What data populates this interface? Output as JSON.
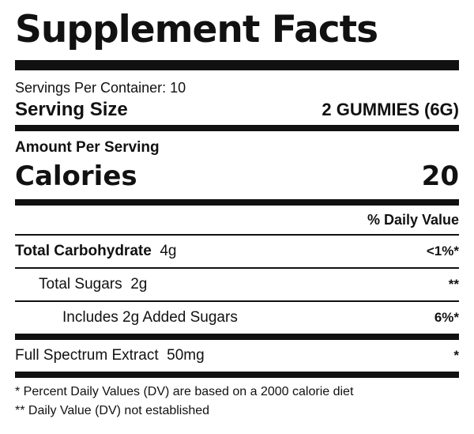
{
  "label": {
    "title": "Supplement Facts",
    "servings_per_container": "Servings Per Container: 10",
    "serving_size_label": "Serving Size",
    "serving_size_value": "2 GUMMIES (6G)",
    "amount_per_serving": "Amount Per Serving",
    "calories_label": "Calories",
    "calories_value": "20",
    "daily_value_header": "% Daily Value",
    "nutrients": [
      {
        "name": "Total Carbohydrate",
        "amount": "4g",
        "dv": "<1%*"
      },
      {
        "name": "Total Sugars",
        "amount": "2g",
        "dv": "**"
      },
      {
        "name": "Includes 2g Added Sugars",
        "amount": "",
        "dv": "6%*"
      },
      {
        "name": "Full Spectrum Extract",
        "amount": "50mg",
        "dv": "*"
      }
    ],
    "footnotes": [
      "* Percent Daily Values (DV) are based on a 2000 calorie diet",
      "** Daily Value (DV) not established"
    ]
  }
}
